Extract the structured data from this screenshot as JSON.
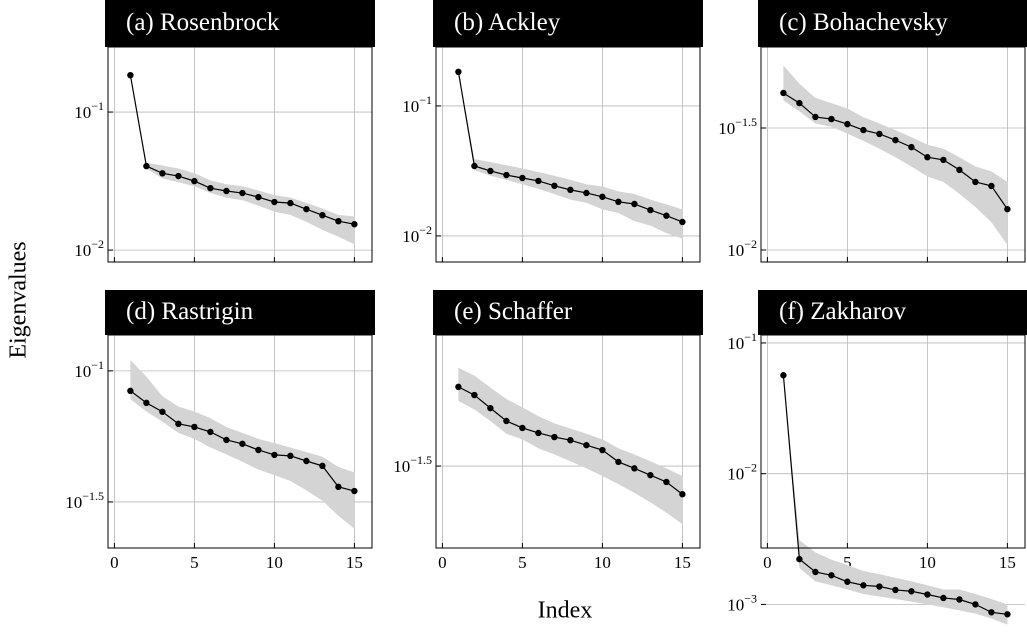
{
  "xlabel": "Index",
  "ylabel": "Eigenvalues",
  "chart_data": [
    {
      "type": "line",
      "title": "(a) Rosenbrock",
      "log_y": true,
      "grid": true,
      "show_xticklabels": false,
      "color": "#000000",
      "band_color": "#d4d4d4",
      "x": [
        1,
        2,
        3,
        4,
        5,
        6,
        7,
        8,
        9,
        10,
        11,
        12,
        13,
        14,
        15
      ],
      "values": [
        0.185,
        0.0406,
        0.036,
        0.0344,
        0.0316,
        0.0281,
        0.0268,
        0.0259,
        0.0242,
        0.0223,
        0.0219,
        0.0198,
        0.0179,
        0.0162,
        0.0154
      ],
      "band_upper": [
        0.185,
        0.043,
        0.041,
        0.039,
        0.036,
        0.032,
        0.03,
        0.029,
        0.027,
        0.025,
        0.024,
        0.022,
        0.02,
        0.018,
        0.0175
      ],
      "band_lower": [
        0.185,
        0.039,
        0.033,
        0.031,
        0.029,
        0.026,
        0.024,
        0.023,
        0.021,
        0.019,
        0.018,
        0.016,
        0.014,
        0.0125,
        0.011
      ],
      "xlim": [
        -0.4,
        16.1
      ],
      "xticks": [
        0,
        5,
        10,
        15
      ],
      "ylim": [
        0.0082,
        0.296
      ],
      "yticks": [
        {
          "value": 0.1,
          "label": "10−1"
        },
        {
          "value": 0.01,
          "label": "10−2"
        }
      ]
    },
    {
      "type": "line",
      "title": "(b) Ackley",
      "log_y": true,
      "grid": true,
      "show_xticklabels": false,
      "color": "#000000",
      "band_color": "#d4d4d4",
      "x": [
        1,
        2,
        3,
        4,
        5,
        6,
        7,
        8,
        9,
        10,
        11,
        12,
        13,
        14,
        15
      ],
      "values": [
        0.183,
        0.0345,
        0.0316,
        0.0294,
        0.0279,
        0.0265,
        0.0243,
        0.0226,
        0.0214,
        0.02,
        0.0183,
        0.0176,
        0.0158,
        0.0143,
        0.0128
      ],
      "band_upper": [
        0.183,
        0.039,
        0.037,
        0.035,
        0.033,
        0.031,
        0.029,
        0.027,
        0.025,
        0.024,
        0.022,
        0.021,
        0.019,
        0.0175,
        0.016
      ],
      "band_lower": [
        0.183,
        0.032,
        0.029,
        0.027,
        0.025,
        0.023,
        0.021,
        0.019,
        0.018,
        0.016,
        0.015,
        0.013,
        0.012,
        0.0105,
        0.0095
      ],
      "xlim": [
        -0.4,
        16.1
      ],
      "xticks": [
        0,
        5,
        10,
        15
      ],
      "ylim": [
        0.0063,
        0.284
      ],
      "yticks": [
        {
          "value": 0.1,
          "label": "10−1"
        },
        {
          "value": 0.01,
          "label": "10−2"
        }
      ]
    },
    {
      "type": "line",
      "title": "(c) Bohachevsky",
      "log_y": true,
      "grid": true,
      "show_xticklabels": false,
      "color": "#000000",
      "band_color": "#d4d4d4",
      "x": [
        1,
        2,
        3,
        4,
        5,
        6,
        7,
        8,
        9,
        10,
        11,
        12,
        13,
        14,
        15
      ],
      "values": [
        0.044,
        0.04,
        0.0351,
        0.0344,
        0.0328,
        0.031,
        0.0299,
        0.0282,
        0.0264,
        0.024,
        0.0234,
        0.0213,
        0.019,
        0.0183,
        0.0147
      ],
      "band_upper": [
        0.057,
        0.048,
        0.042,
        0.04,
        0.038,
        0.035,
        0.033,
        0.031,
        0.029,
        0.027,
        0.026,
        0.024,
        0.022,
        0.021,
        0.019
      ],
      "band_lower": [
        0.041,
        0.037,
        0.033,
        0.032,
        0.03,
        0.028,
        0.026,
        0.024,
        0.022,
        0.02,
        0.019,
        0.017,
        0.015,
        0.013,
        0.0105
      ],
      "xlim": [
        -0.4,
        16.1
      ],
      "xticks": [
        0,
        5,
        10,
        15
      ],
      "ylim": [
        0.00893,
        0.0679
      ],
      "yticks": [
        {
          "value": 0.0316228,
          "label": "10−1.5"
        },
        {
          "value": 0.01,
          "label": "10−2"
        }
      ]
    },
    {
      "type": "line",
      "title": "(d) Rastrigin",
      "log_y": true,
      "grid": true,
      "show_xticklabels": true,
      "color": "#000000",
      "band_color": "#d4d4d4",
      "x": [
        1,
        2,
        3,
        4,
        5,
        6,
        7,
        8,
        9,
        10,
        11,
        12,
        13,
        14,
        15
      ],
      "values": [
        0.0839,
        0.0755,
        0.0698,
        0.0628,
        0.0611,
        0.0585,
        0.0545,
        0.0527,
        0.0499,
        0.0478,
        0.0474,
        0.0453,
        0.0434,
        0.0361,
        0.0348
      ],
      "band_upper": [
        0.11,
        0.095,
        0.08,
        0.073,
        0.07,
        0.066,
        0.061,
        0.058,
        0.055,
        0.053,
        0.051,
        0.049,
        0.047,
        0.043,
        0.041
      ],
      "band_lower": [
        0.078,
        0.07,
        0.064,
        0.058,
        0.055,
        0.051,
        0.048,
        0.045,
        0.042,
        0.04,
        0.038,
        0.035,
        0.032,
        0.028,
        0.025
      ],
      "xlim": [
        -0.4,
        16.1
      ],
      "xticks": [
        0,
        5,
        10,
        15
      ],
      "ylim": [
        0.0211,
        0.137
      ],
      "yticks": [
        {
          "value": 0.1,
          "label": "10−1"
        },
        {
          "value": 0.0316228,
          "label": "10−1.5"
        }
      ]
    },
    {
      "type": "line",
      "title": "(e) Schaffer",
      "log_y": true,
      "grid": true,
      "show_xticklabels": true,
      "color": "#000000",
      "band_color": "#d4d4d4",
      "x": [
        1,
        2,
        3,
        4,
        5,
        6,
        7,
        8,
        9,
        10,
        11,
        12,
        13,
        14,
        15
      ],
      "values": [
        0.0634,
        0.059,
        0.0526,
        0.047,
        0.0442,
        0.0423,
        0.0408,
        0.0397,
        0.038,
        0.0364,
        0.0328,
        0.031,
        0.0292,
        0.0275,
        0.0247
      ],
      "band_upper": [
        0.075,
        0.07,
        0.063,
        0.057,
        0.053,
        0.049,
        0.046,
        0.044,
        0.042,
        0.04,
        0.037,
        0.035,
        0.033,
        0.031,
        0.029
      ],
      "band_lower": [
        0.056,
        0.052,
        0.047,
        0.042,
        0.04,
        0.037,
        0.035,
        0.033,
        0.031,
        0.029,
        0.027,
        0.025,
        0.023,
        0.021,
        0.019
      ],
      "xlim": [
        -0.4,
        16.1
      ],
      "xticks": [
        0,
        5,
        10,
        15
      ],
      "ylim": [
        0.0154,
        0.1
      ],
      "yticks": [
        {
          "value": 0.0316228,
          "label": "10−1.5"
        }
      ]
    },
    {
      "type": "line",
      "title": "(f) Zakharov",
      "log_y": true,
      "grid": true,
      "show_xticklabels": true,
      "color": "#000000",
      "band_color": "#d4d4d4",
      "x": [
        1,
        2,
        3,
        4,
        5,
        6,
        7,
        8,
        9,
        10,
        11,
        12,
        13,
        14,
        15
      ],
      "values": [
        0.0566,
        0.00222,
        0.00177,
        0.00167,
        0.00149,
        0.0014,
        0.00137,
        0.00129,
        0.00126,
        0.00119,
        0.00112,
        0.00109,
        0.001,
        0.00087,
        0.00084
      ],
      "band_upper": [
        0.0566,
        0.0031,
        0.0025,
        0.0022,
        0.002,
        0.0018,
        0.0017,
        0.0016,
        0.0015,
        0.0014,
        0.0013,
        0.0013,
        0.0012,
        0.0011,
        0.001
      ],
      "band_lower": [
        0.0566,
        0.0019,
        0.0015,
        0.0014,
        0.0013,
        0.0012,
        0.00115,
        0.0011,
        0.00105,
        0.001,
        0.00095,
        0.0009,
        0.00085,
        0.00078,
        0.0007
      ],
      "xlim": [
        -0.4,
        16.1
      ],
      "xticks": [
        0,
        5,
        10,
        15
      ],
      "ylim": [
        0.0027,
        0.115
      ],
      "yticks": [
        {
          "value": 0.1,
          "label": "10−1"
        },
        {
          "value": 0.01,
          "label": "10−2"
        },
        {
          "value": 0.001,
          "label": "10−3"
        }
      ]
    }
  ]
}
